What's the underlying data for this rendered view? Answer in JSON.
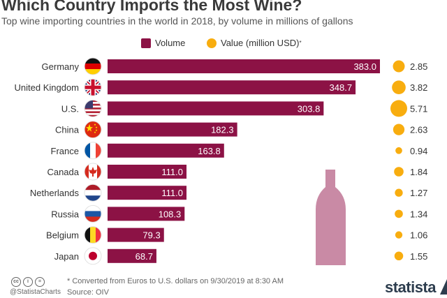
{
  "header": {
    "title": "Which Country Imports the Most Wine?",
    "subtitle": "Top wine importing countries in the world in 2018, by volume in millions of gallons"
  },
  "legend": {
    "volume_label": "Volume",
    "value_label": "Value (million USD)",
    "value_marker": "*"
  },
  "chart_data": {
    "type": "bar",
    "categories": [
      "Germany",
      "United Kingdom",
      "U.S.",
      "China",
      "France",
      "Canada",
      "Netherlands",
      "Russia",
      "Belgium",
      "Japan"
    ],
    "series": [
      {
        "name": "Volume",
        "values": [
          383.0,
          348.7,
          303.8,
          182.3,
          163.8,
          111.0,
          111.0,
          108.3,
          79.3,
          68.7
        ]
      },
      {
        "name": "Value (million USD)",
        "values": [
          2.85,
          3.82,
          5.71,
          2.63,
          0.94,
          1.84,
          1.27,
          1.34,
          1.06,
          1.55
        ]
      }
    ],
    "flags": [
      "germany-flag-icon",
      "uk-flag-icon",
      "us-flag-icon",
      "china-flag-icon",
      "france-flag-icon",
      "canada-flag-icon",
      "netherlands-flag-icon",
      "russia-flag-icon",
      "belgium-flag-icon",
      "japan-flag-icon"
    ],
    "colors": {
      "volume": "#8c1245",
      "value": "#f8ad0f",
      "bottle": "#c98aa5"
    },
    "xlim": [
      0,
      383.0
    ]
  },
  "footer": {
    "note": "* Converted from Euros to U.S. dollars on 9/30/2019 at 8:30 AM",
    "source": "Source: OIV",
    "handle": "@StatistaCharts",
    "brand": "statista",
    "license_icons": [
      "cc",
      "i",
      "="
    ]
  }
}
